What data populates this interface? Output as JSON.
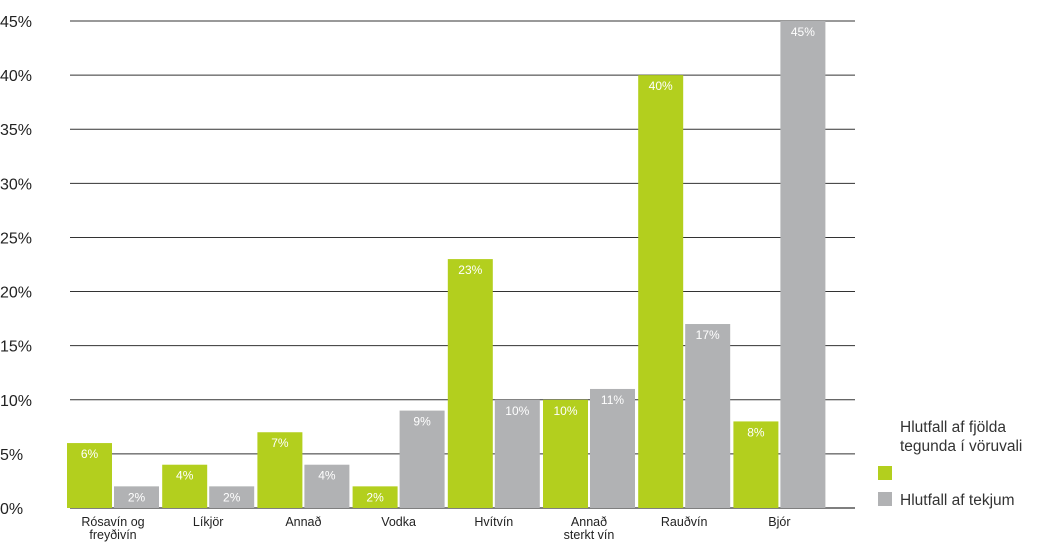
{
  "chart_data": {
    "type": "bar",
    "title": "",
    "xlabel": "",
    "ylabel": "",
    "ylim": [
      0,
      45
    ],
    "y_ticks": [
      0,
      5,
      10,
      15,
      20,
      25,
      30,
      35,
      40,
      45
    ],
    "y_tick_suffix": "%",
    "grid": true,
    "legend_position": "right",
    "categories": [
      [
        "Rósavín og",
        "freyðivín"
      ],
      [
        "Líkjör"
      ],
      [
        "Annað"
      ],
      [
        "Vodka"
      ],
      [
        "Hvítvín"
      ],
      [
        "Annað",
        "sterkt vín"
      ],
      [
        "Rauðvín"
      ],
      [
        "Bjór"
      ]
    ],
    "series": [
      {
        "name": [
          "Hlutfall af fjölda",
          "tegunda í vöruvali"
        ],
        "color": "#b3cf1e",
        "values": [
          6,
          4,
          7,
          2,
          23,
          10,
          40,
          8
        ],
        "labels": [
          "6%",
          "4%",
          "7%",
          "2%",
          "23%",
          "10%",
          "40%",
          "8%"
        ]
      },
      {
        "name": [
          "Hlutfall af tekjum"
        ],
        "color": "#b1b2b4",
        "values": [
          2,
          2,
          4,
          9,
          10,
          11,
          17,
          45
        ],
        "labels": [
          "2%",
          "2%",
          "4%",
          "9%",
          "10%",
          "11%",
          "17%",
          "45%"
        ]
      }
    ]
  }
}
